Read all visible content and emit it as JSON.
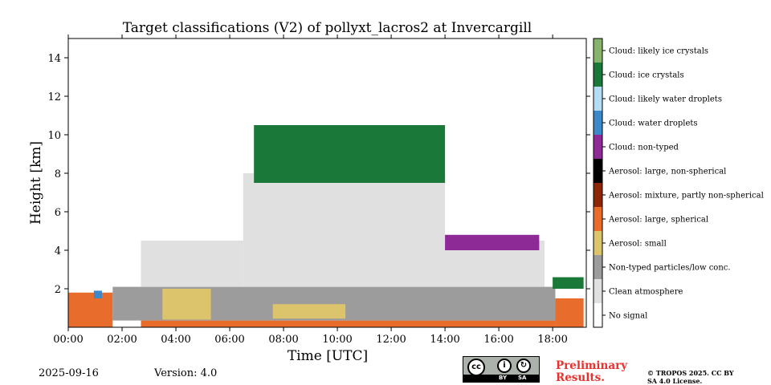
{
  "title": "Target classifications (V2) of pollyxt_lacros2 at Invercargill",
  "date": "2025-09-16",
  "version": "Version: 4.0",
  "preliminary": "Preliminary Results.",
  "copyright": "© TROPOS 2025. CC BY SA 4.0 License.",
  "license_badge": {
    "cc": "cc",
    "by": "BY",
    "sa": "SA"
  },
  "chart_data": {
    "type": "heatmap",
    "xlabel": "Time [UTC]",
    "ylabel": "Height [km]",
    "xlim": [
      "00:00",
      "19:15"
    ],
    "ylim": [
      0,
      15
    ],
    "x_ticks": [
      "00:00",
      "02:00",
      "04:00",
      "06:00",
      "08:00",
      "10:00",
      "12:00",
      "14:00",
      "16:00",
      "18:00"
    ],
    "y_ticks": [
      2,
      4,
      6,
      8,
      10,
      12,
      14
    ],
    "categories": [
      {
        "label": "No signal",
        "color": "#ffffff"
      },
      {
        "label": "Clean atmosphere",
        "color": "#e0e0e0"
      },
      {
        "label": "Non-typed particles/low conc.",
        "color": "#9c9c9c"
      },
      {
        "label": "Aerosol: small",
        "color": "#dcc46c"
      },
      {
        "label": "Aerosol: large, spherical",
        "color": "#e86d2c"
      },
      {
        "label": "Aerosol: mixture, partly non-spherical",
        "color": "#8c2808"
      },
      {
        "label": "Aerosol: large, non-spherical",
        "color": "#000000"
      },
      {
        "label": "Cloud: non-typed",
        "color": "#8e2a96"
      },
      {
        "label": "Cloud: water droplets",
        "color": "#3c88c8"
      },
      {
        "label": "Cloud: likely water droplets",
        "color": "#b4dcf4"
      },
      {
        "label": "Cloud: ice crystals",
        "color": "#1a7838"
      },
      {
        "label": "Cloud: likely ice crystals",
        "color": "#86b46c"
      }
    ],
    "regions": [
      {
        "category": "Aerosol: large, spherical",
        "t": [
          0.0,
          1.65
        ],
        "h": [
          0,
          1.8
        ]
      },
      {
        "category": "Aerosol: large, spherical",
        "t": [
          2.7,
          18.1
        ],
        "h": [
          0,
          0.35
        ]
      },
      {
        "category": "Aerosol: large, spherical",
        "t": [
          18.1,
          19.15
        ],
        "h": [
          0,
          1.5
        ]
      },
      {
        "category": "Non-typed particles/low conc.",
        "t": [
          1.65,
          18.1
        ],
        "h": [
          0.35,
          2.1
        ]
      },
      {
        "category": "Aerosol: small",
        "t": [
          3.5,
          5.3
        ],
        "h": [
          0.4,
          2.0
        ]
      },
      {
        "category": "Aerosol: small",
        "t": [
          7.6,
          10.3
        ],
        "h": [
          0.45,
          1.2
        ]
      },
      {
        "category": "Clean atmosphere",
        "t": [
          2.7,
          6.5
        ],
        "h": [
          2.1,
          4.5
        ]
      },
      {
        "category": "Clean atmosphere",
        "t": [
          6.5,
          14.0
        ],
        "h": [
          2.1,
          8.0
        ]
      },
      {
        "category": "Clean atmosphere",
        "t": [
          14.0,
          17.7
        ],
        "h": [
          2.1,
          4.5
        ]
      },
      {
        "category": "Cloud: ice crystals",
        "t": [
          6.9,
          14.0
        ],
        "h": [
          7.5,
          10.5
        ]
      },
      {
        "category": "Cloud: ice crystals",
        "t": [
          18.0,
          19.15
        ],
        "h": [
          2.0,
          2.6
        ]
      },
      {
        "category": "Cloud: non-typed",
        "t": [
          14.0,
          17.5
        ],
        "h": [
          4.0,
          4.8
        ]
      },
      {
        "category": "Cloud: water droplets",
        "t": [
          0.95,
          1.25
        ],
        "h": [
          1.5,
          1.9
        ]
      }
    ]
  }
}
